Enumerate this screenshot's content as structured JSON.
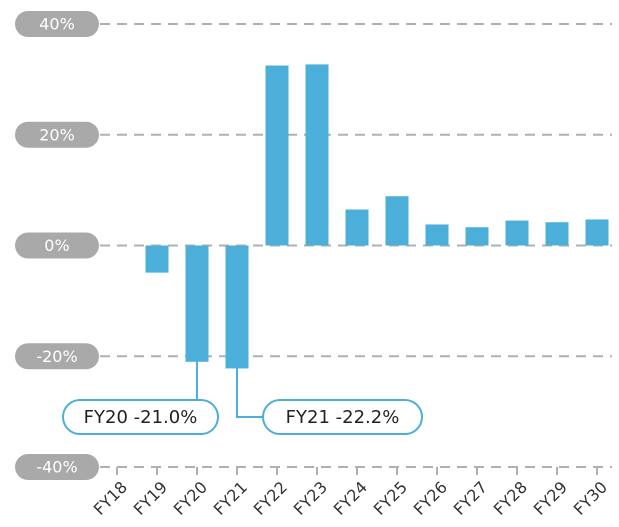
{
  "chart_data": {
    "type": "bar",
    "categories": [
      "FY18",
      "FY19",
      "FY20",
      "FY21",
      "FY22",
      "FY23",
      "FY24",
      "FY25",
      "FY26",
      "FY27",
      "FY28",
      "FY29",
      "FY30"
    ],
    "values": [
      null,
      -4.9,
      -21.0,
      -22.2,
      32.5,
      32.7,
      6.5,
      8.9,
      3.8,
      3.3,
      4.5,
      4.2,
      4.7
    ],
    "value_labels": [
      null,
      null,
      "FY20 -21.0%",
      "FY21 -22.2%",
      null,
      null,
      null,
      null,
      null,
      null,
      null,
      null,
      null
    ],
    "color": "#4bafd9",
    "ylim": [
      -40,
      40
    ],
    "yticks": [
      {
        "value": -40,
        "label": "-40%"
      },
      {
        "value": -20,
        "label": "-20%"
      },
      {
        "value": 0,
        "label": "0%"
      },
      {
        "value": 20,
        "label": "20%"
      },
      {
        "value": 40,
        "label": "40%"
      }
    ],
    "grid": true
  }
}
